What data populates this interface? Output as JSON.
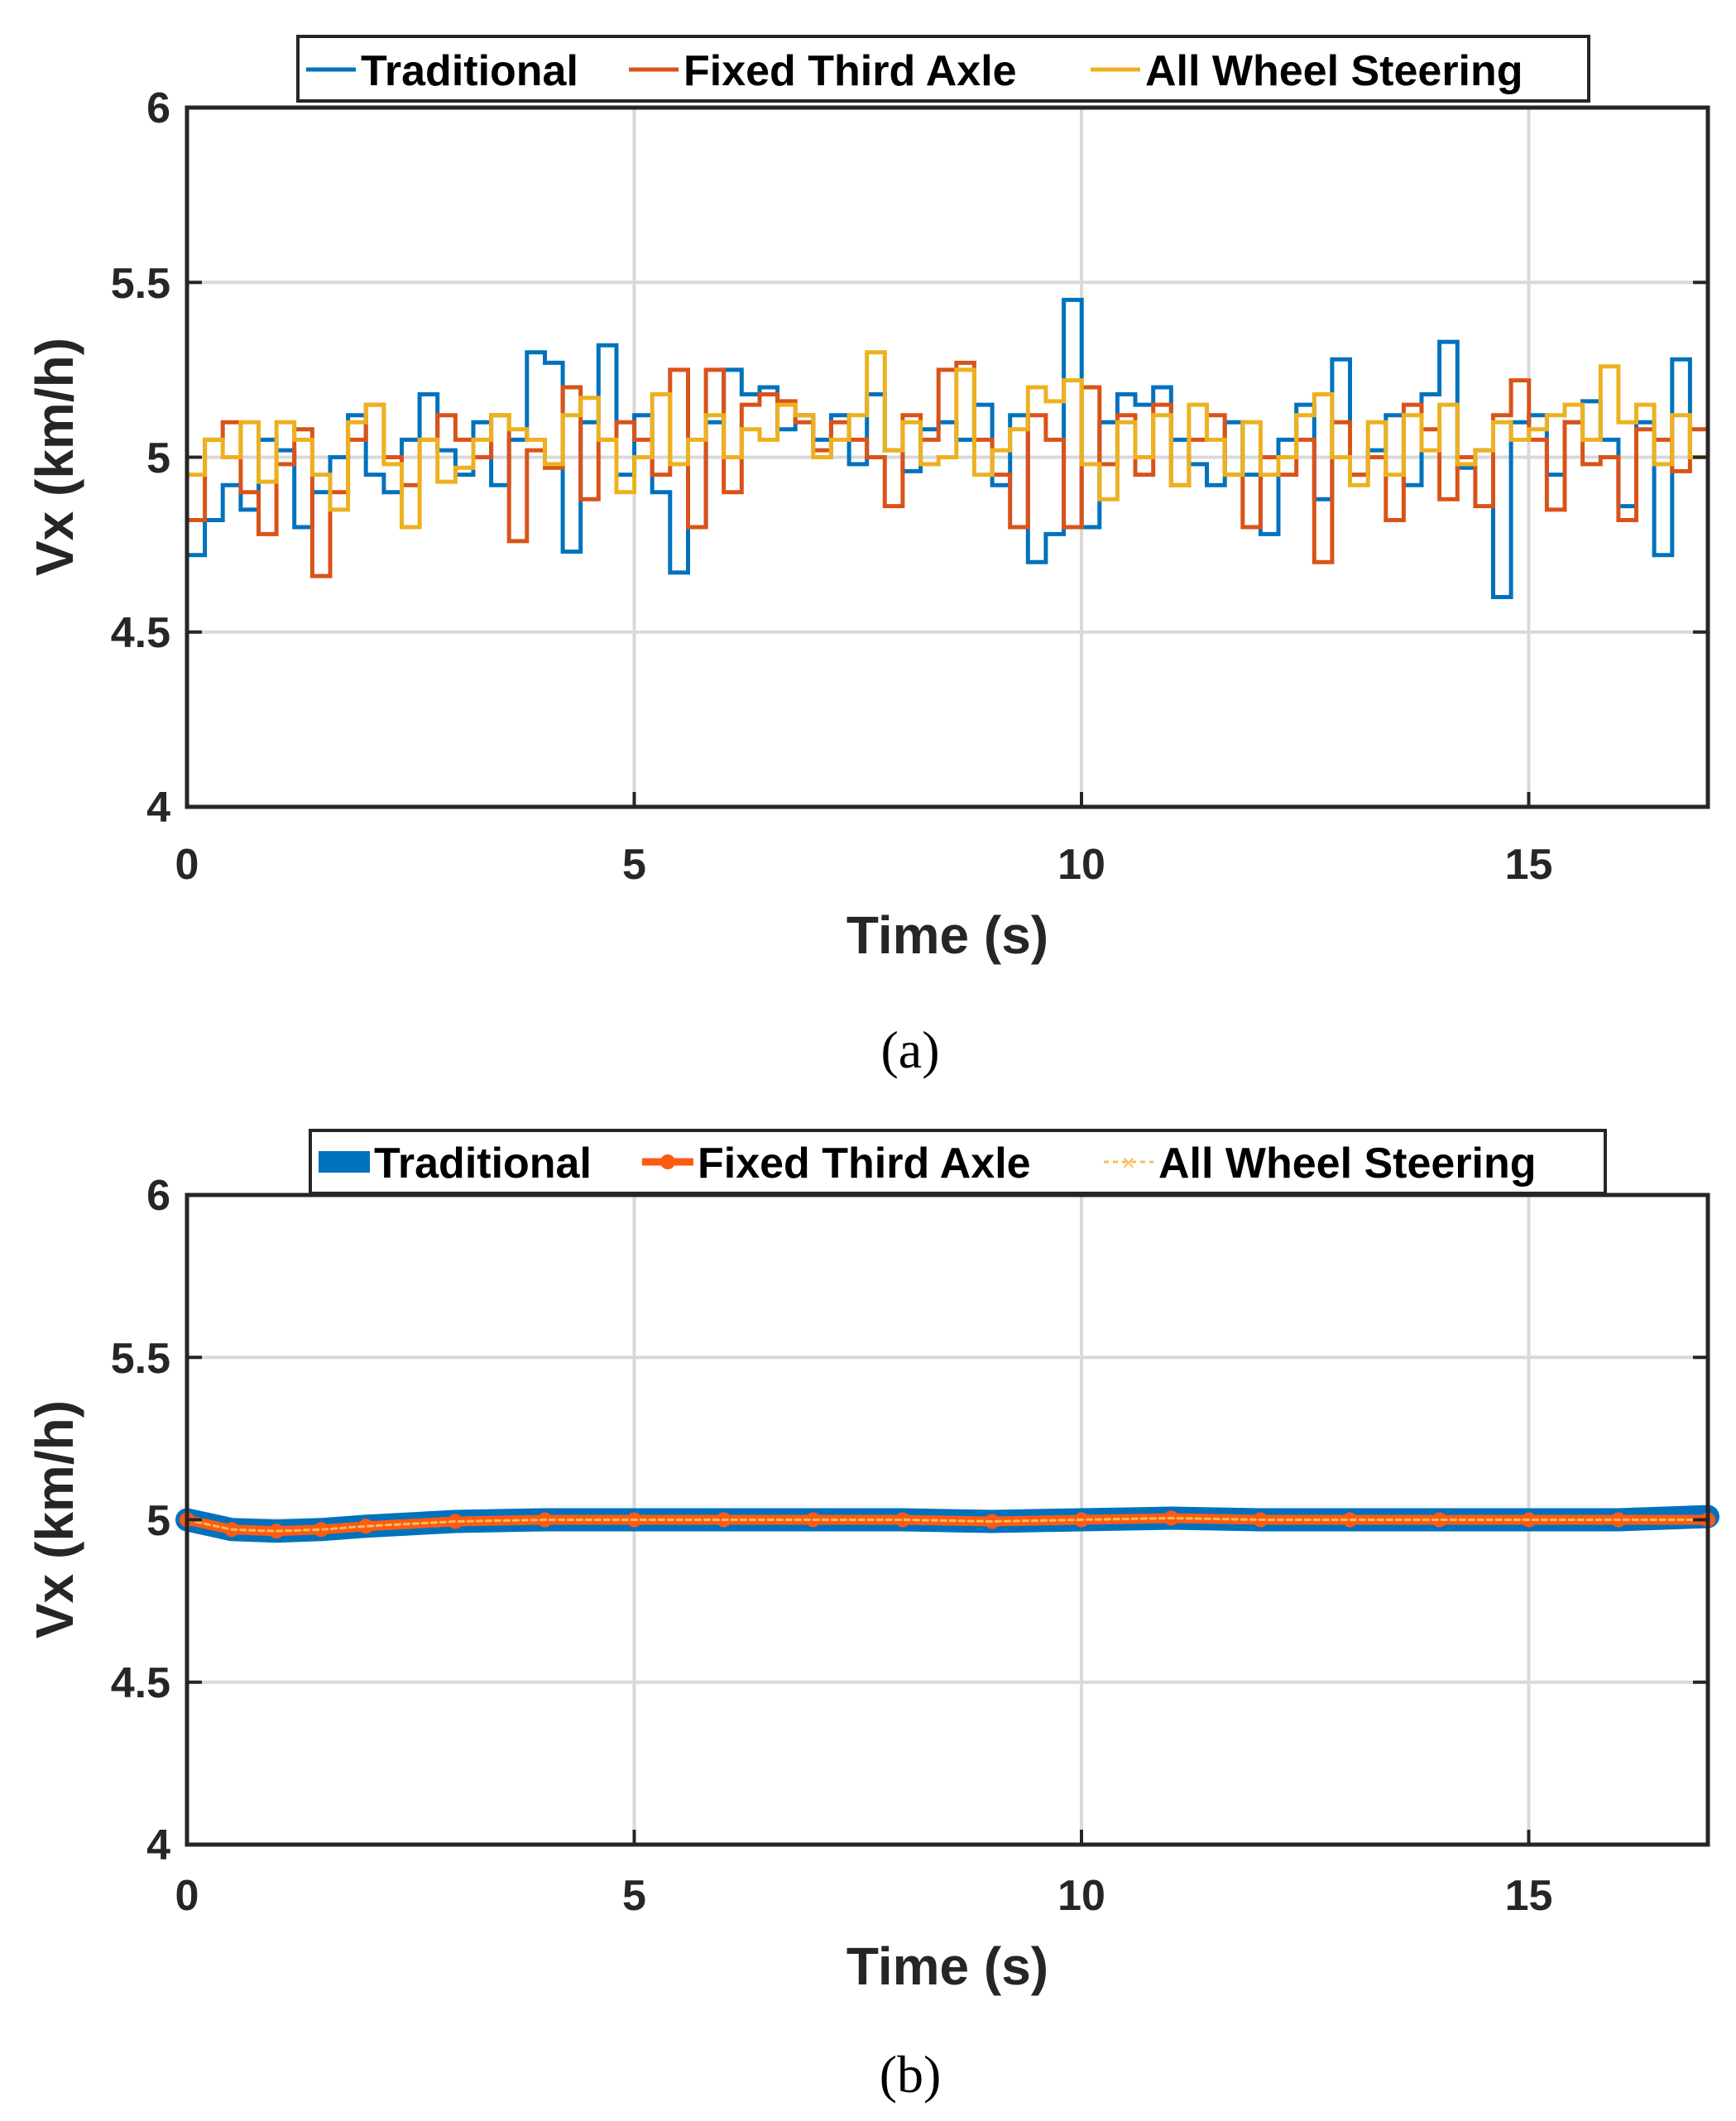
{
  "chart_data": [
    {
      "type": "line",
      "caption": "(a)",
      "xlabel": "Time (s)",
      "ylabel": "Vx (km/h)",
      "xlim": [
        0,
        17
      ],
      "ylim": [
        4,
        6
      ],
      "xticks": [
        0,
        5,
        10,
        15
      ],
      "yticks": [
        4,
        4.5,
        5,
        5.5,
        6
      ],
      "xtick_labels": [
        "0",
        "5",
        "10",
        "15"
      ],
      "ytick_labels": [
        "4",
        "4.5",
        "5",
        "5.5",
        "6"
      ],
      "grid": true,
      "legend_position": "top",
      "colors": {
        "traditional": "#0072BD",
        "fixed": "#D95319",
        "aws": "#EDB120"
      },
      "series": [
        {
          "name": "Traditional",
          "x": [
            0,
            0.2,
            0.4,
            0.6,
            0.8,
            1.0,
            1.2,
            1.4,
            1.6,
            1.8,
            2.0,
            2.2,
            2.4,
            2.6,
            2.8,
            3.0,
            3.2,
            3.4,
            3.6,
            3.8,
            4.0,
            4.2,
            4.4,
            4.6,
            4.8,
            5.0,
            5.2,
            5.4,
            5.6,
            5.8,
            6.0,
            6.2,
            6.4,
            6.6,
            6.8,
            7.0,
            7.2,
            7.4,
            7.6,
            7.8,
            8.0,
            8.2,
            8.4,
            8.6,
            8.8,
            9.0,
            9.2,
            9.4,
            9.6,
            9.8,
            10.0,
            10.2,
            10.4,
            10.6,
            10.8,
            11.0,
            11.2,
            11.4,
            11.6,
            11.8,
            12.0,
            12.2,
            12.4,
            12.6,
            12.8,
            13.0,
            13.2,
            13.4,
            13.6,
            13.8,
            14.0,
            14.2,
            14.4,
            14.6,
            14.8,
            15.0,
            15.2,
            15.4,
            15.6,
            15.8,
            16.0,
            16.2,
            16.4,
            16.6,
            16.8,
            17.0
          ],
          "values": [
            4.72,
            4.82,
            4.92,
            4.85,
            5.05,
            5.02,
            4.8,
            4.9,
            5.0,
            5.12,
            4.95,
            4.9,
            5.05,
            5.18,
            5.02,
            4.95,
            5.1,
            4.92,
            5.05,
            5.3,
            5.27,
            4.73,
            5.1,
            5.32,
            4.95,
            5.12,
            4.9,
            4.67,
            4.8,
            5.1,
            5.25,
            5.18,
            5.2,
            5.08,
            5.12,
            5.05,
            5.12,
            4.98,
            5.18,
            5.02,
            4.96,
            5.08,
            5.1,
            5.05,
            5.15,
            4.92,
            5.12,
            4.7,
            4.78,
            5.45,
            4.8,
            5.1,
            5.18,
            5.15,
            5.2,
            5.05,
            4.98,
            4.92,
            5.1,
            4.95,
            4.78,
            5.05,
            5.15,
            4.88,
            5.28,
            4.95,
            5.02,
            5.12,
            4.92,
            5.18,
            5.33,
            4.97,
            5.02,
            4.6,
            5.1,
            5.12,
            4.95,
            5.1,
            5.16,
            5.05,
            4.86,
            5.1,
            4.72,
            5.28,
            5.0,
            5.17
          ]
        },
        {
          "name": "Fixed Third Axle",
          "x": [
            0,
            0.2,
            0.4,
            0.6,
            0.8,
            1.0,
            1.2,
            1.4,
            1.6,
            1.8,
            2.0,
            2.2,
            2.4,
            2.6,
            2.8,
            3.0,
            3.2,
            3.4,
            3.6,
            3.8,
            4.0,
            4.2,
            4.4,
            4.6,
            4.8,
            5.0,
            5.2,
            5.4,
            5.6,
            5.8,
            6.0,
            6.2,
            6.4,
            6.6,
            6.8,
            7.0,
            7.2,
            7.4,
            7.6,
            7.8,
            8.0,
            8.2,
            8.4,
            8.6,
            8.8,
            9.0,
            9.2,
            9.4,
            9.6,
            9.8,
            10.0,
            10.2,
            10.4,
            10.6,
            10.8,
            11.0,
            11.2,
            11.4,
            11.6,
            11.8,
            12.0,
            12.2,
            12.4,
            12.6,
            12.8,
            13.0,
            13.2,
            13.4,
            13.6,
            13.8,
            14.0,
            14.2,
            14.4,
            14.6,
            14.8,
            15.0,
            15.2,
            15.4,
            15.6,
            15.8,
            16.0,
            16.2,
            16.4,
            16.6,
            16.8,
            17.0
          ],
          "values": [
            4.82,
            5.05,
            5.1,
            4.9,
            4.78,
            4.98,
            5.08,
            4.66,
            4.9,
            5.05,
            5.15,
            5.0,
            4.92,
            5.05,
            5.12,
            5.05,
            5.0,
            5.12,
            4.76,
            5.02,
            4.97,
            5.2,
            4.88,
            5.05,
            5.1,
            5.05,
            4.95,
            5.25,
            4.8,
            5.25,
            4.9,
            5.15,
            5.18,
            5.16,
            5.1,
            5.02,
            5.1,
            5.05,
            5.0,
            4.86,
            5.12,
            5.05,
            5.25,
            5.27,
            5.05,
            4.95,
            4.8,
            5.12,
            5.05,
            4.8,
            5.2,
            4.98,
            5.12,
            4.95,
            5.15,
            4.92,
            5.05,
            5.12,
            4.95,
            4.8,
            5.0,
            4.95,
            5.05,
            4.7,
            5.1,
            4.95,
            5.0,
            4.82,
            5.15,
            5.08,
            4.88,
            5.0,
            4.86,
            5.12,
            5.22,
            5.05,
            4.85,
            5.1,
            4.98,
            5.0,
            4.82,
            5.08,
            5.05,
            4.96,
            5.08,
            5.06
          ]
        },
        {
          "name": "All Wheel Steering",
          "x": [
            0,
            0.2,
            0.4,
            0.6,
            0.8,
            1.0,
            1.2,
            1.4,
            1.6,
            1.8,
            2.0,
            2.2,
            2.4,
            2.6,
            2.8,
            3.0,
            3.2,
            3.4,
            3.6,
            3.8,
            4.0,
            4.2,
            4.4,
            4.6,
            4.8,
            5.0,
            5.2,
            5.4,
            5.6,
            5.8,
            6.0,
            6.2,
            6.4,
            6.6,
            6.8,
            7.0,
            7.2,
            7.4,
            7.6,
            7.8,
            8.0,
            8.2,
            8.4,
            8.6,
            8.8,
            9.0,
            9.2,
            9.4,
            9.6,
            9.8,
            10.0,
            10.2,
            10.4,
            10.6,
            10.8,
            11.0,
            11.2,
            11.4,
            11.6,
            11.8,
            12.0,
            12.2,
            12.4,
            12.6,
            12.8,
            13.0,
            13.2,
            13.4,
            13.6,
            13.8,
            14.0,
            14.2,
            14.4,
            14.6,
            14.8,
            15.0,
            15.2,
            15.4,
            15.6,
            15.8,
            16.0,
            16.2,
            16.4,
            16.6,
            16.8,
            17.0
          ],
          "values": [
            4.95,
            5.05,
            5.0,
            5.1,
            4.93,
            5.1,
            5.05,
            4.95,
            4.85,
            5.1,
            5.15,
            4.98,
            4.8,
            5.05,
            4.93,
            4.97,
            5.05,
            5.12,
            5.08,
            5.05,
            4.98,
            5.12,
            5.17,
            5.05,
            4.9,
            5.0,
            5.18,
            4.98,
            5.05,
            5.12,
            5.0,
            5.08,
            5.05,
            5.15,
            5.12,
            5.0,
            5.05,
            5.12,
            5.3,
            5.02,
            5.1,
            4.98,
            5.0,
            5.25,
            4.95,
            5.02,
            5.08,
            5.2,
            5.16,
            5.22,
            4.98,
            4.88,
            5.1,
            5.0,
            5.12,
            4.92,
            5.15,
            5.05,
            4.95,
            5.1,
            4.95,
            5.0,
            5.12,
            5.18,
            5.0,
            4.92,
            5.1,
            4.95,
            5.12,
            5.02,
            5.15,
            4.98,
            5.02,
            5.1,
            5.05,
            5.08,
            5.12,
            5.15,
            5.05,
            5.26,
            5.1,
            5.15,
            4.98,
            5.12,
            5.0,
            4.88
          ]
        }
      ]
    },
    {
      "type": "line",
      "caption": "(b)",
      "xlabel": "Time (s)",
      "ylabel": "Vx (km/h)",
      "xlim": [
        0,
        17
      ],
      "ylim": [
        4,
        6
      ],
      "xticks": [
        0,
        5,
        10,
        15
      ],
      "yticks": [
        4,
        4.5,
        5,
        5.5,
        6
      ],
      "xtick_labels": [
        "0",
        "5",
        "10",
        "15"
      ],
      "ytick_labels": [
        "4",
        "4.5",
        "5",
        "5.5",
        "6"
      ],
      "grid": true,
      "legend_position": "top",
      "colors": {
        "traditional": "#0072BD",
        "fixed": "#FF5A14",
        "aws": "#F5C056"
      },
      "series": [
        {
          "name": "Traditional",
          "x": [
            0,
            0.5,
            1,
            1.5,
            2,
            3,
            4,
            5,
            6,
            7,
            8,
            9,
            10,
            11,
            12,
            13,
            14,
            15,
            16,
            17
          ],
          "values": [
            5.0,
            4.97,
            4.965,
            4.97,
            4.98,
            4.995,
            5.0,
            5.0,
            5.0,
            5.0,
            5.0,
            4.995,
            5.0,
            5.005,
            5.0,
            5.0,
            5.0,
            5.0,
            5.0,
            5.01
          ]
        },
        {
          "name": "Fixed Third Axle",
          "x": [
            0,
            0.5,
            1,
            1.5,
            2,
            3,
            4,
            5,
            6,
            7,
            8,
            9,
            10,
            11,
            12,
            13,
            14,
            15,
            16,
            17
          ],
          "values": [
            5.0,
            4.97,
            4.965,
            4.97,
            4.98,
            4.995,
            5.0,
            5.0,
            5.0,
            5.0,
            5.0,
            4.995,
            5.0,
            5.005,
            5.0,
            5.0,
            5.0,
            5.0,
            5.0,
            5.0
          ]
        },
        {
          "name": "All Wheel Steering",
          "x": [
            0,
            0.5,
            1,
            1.5,
            2,
            3,
            4,
            5,
            6,
            7,
            8,
            9,
            10,
            11,
            12,
            13,
            14,
            15,
            16,
            17
          ],
          "values": [
            5.0,
            4.97,
            4.965,
            4.97,
            4.98,
            4.995,
            5.0,
            5.0,
            5.0,
            5.0,
            5.0,
            4.995,
            5.0,
            5.005,
            5.0,
            5.0,
            5.0,
            5.0,
            5.0,
            5.0
          ]
        }
      ]
    }
  ]
}
